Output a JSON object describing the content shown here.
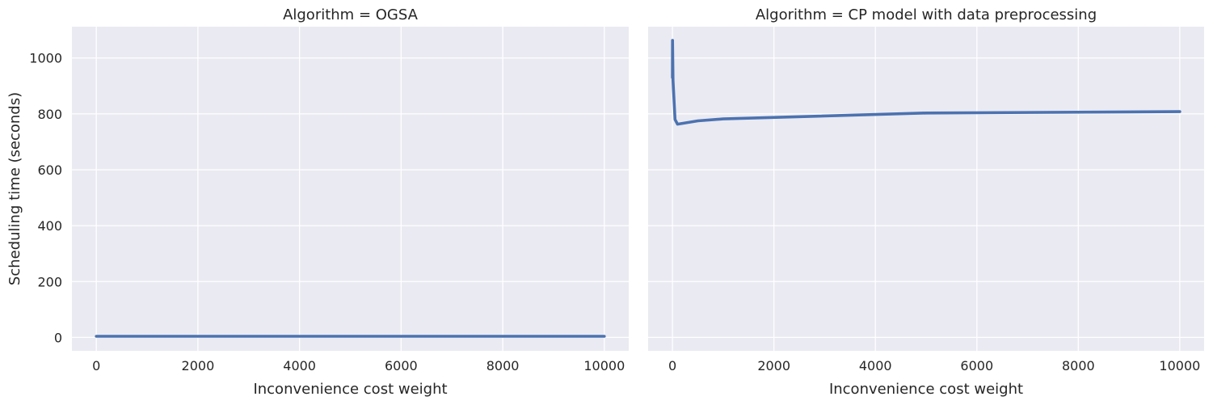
{
  "chart_data": [
    {
      "type": "line",
      "title": "Algorithm = OGSA",
      "xlabel": "Inconvenience cost weight",
      "ylabel": "Scheduling time (seconds)",
      "xlim": [
        -480,
        10480
      ],
      "ylim": [
        -48,
        1112
      ],
      "xticks": [
        0,
        2000,
        4000,
        6000,
        8000,
        10000
      ],
      "yticks": [
        0,
        200,
        400,
        600,
        800,
        1000
      ],
      "grid": true,
      "series": [
        {
          "color": "#4c72b0",
          "x": [
            0,
            1,
            10,
            50,
            100,
            500,
            1000,
            5000,
            10000
          ],
          "y": [
            4,
            4,
            4,
            4,
            4,
            4,
            4,
            4,
            4
          ]
        }
      ]
    },
    {
      "type": "line",
      "title": "Algorithm = CP model with data preprocessing",
      "xlabel": "Inconvenience cost weight",
      "ylabel": "",
      "xlim": [
        -480,
        10480
      ],
      "ylim": [
        -48,
        1112
      ],
      "xticks": [
        0,
        2000,
        4000,
        6000,
        8000,
        10000
      ],
      "yticks": [
        0,
        200,
        400,
        600,
        800,
        1000
      ],
      "grid": true,
      "series": [
        {
          "color": "#4c72b0",
          "x": [
            0,
            1,
            10,
            50,
            100,
            500,
            1000,
            5000,
            10000
          ],
          "y": [
            930,
            1063,
            920,
            780,
            763,
            775,
            782,
            803,
            808
          ]
        }
      ]
    }
  ]
}
